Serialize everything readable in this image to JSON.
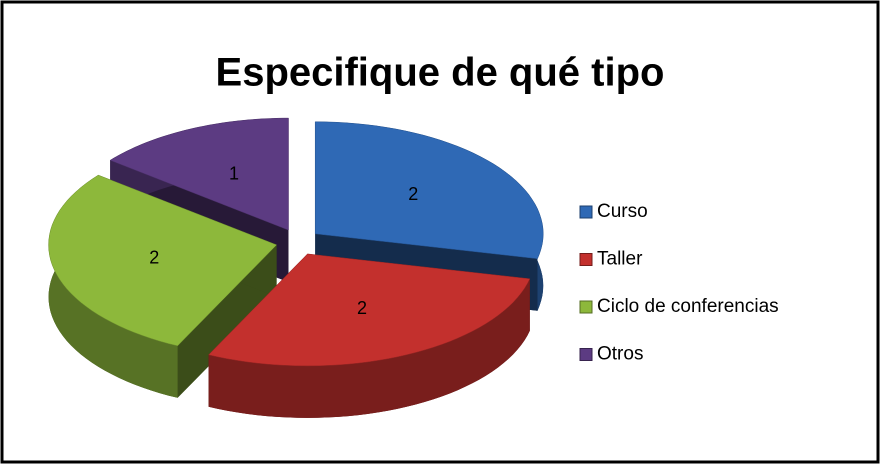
{
  "chart_data": {
    "type": "pie",
    "title": "Especifique de qué tipo",
    "categories": [
      "Curso",
      "Taller",
      "Ciclo de conferencias",
      "Otros"
    ],
    "values": [
      2,
      2,
      2,
      1
    ],
    "colors": [
      "#2f69b5",
      "#c3302d",
      "#8db83b",
      "#5c3b82"
    ],
    "legend": "right"
  }
}
